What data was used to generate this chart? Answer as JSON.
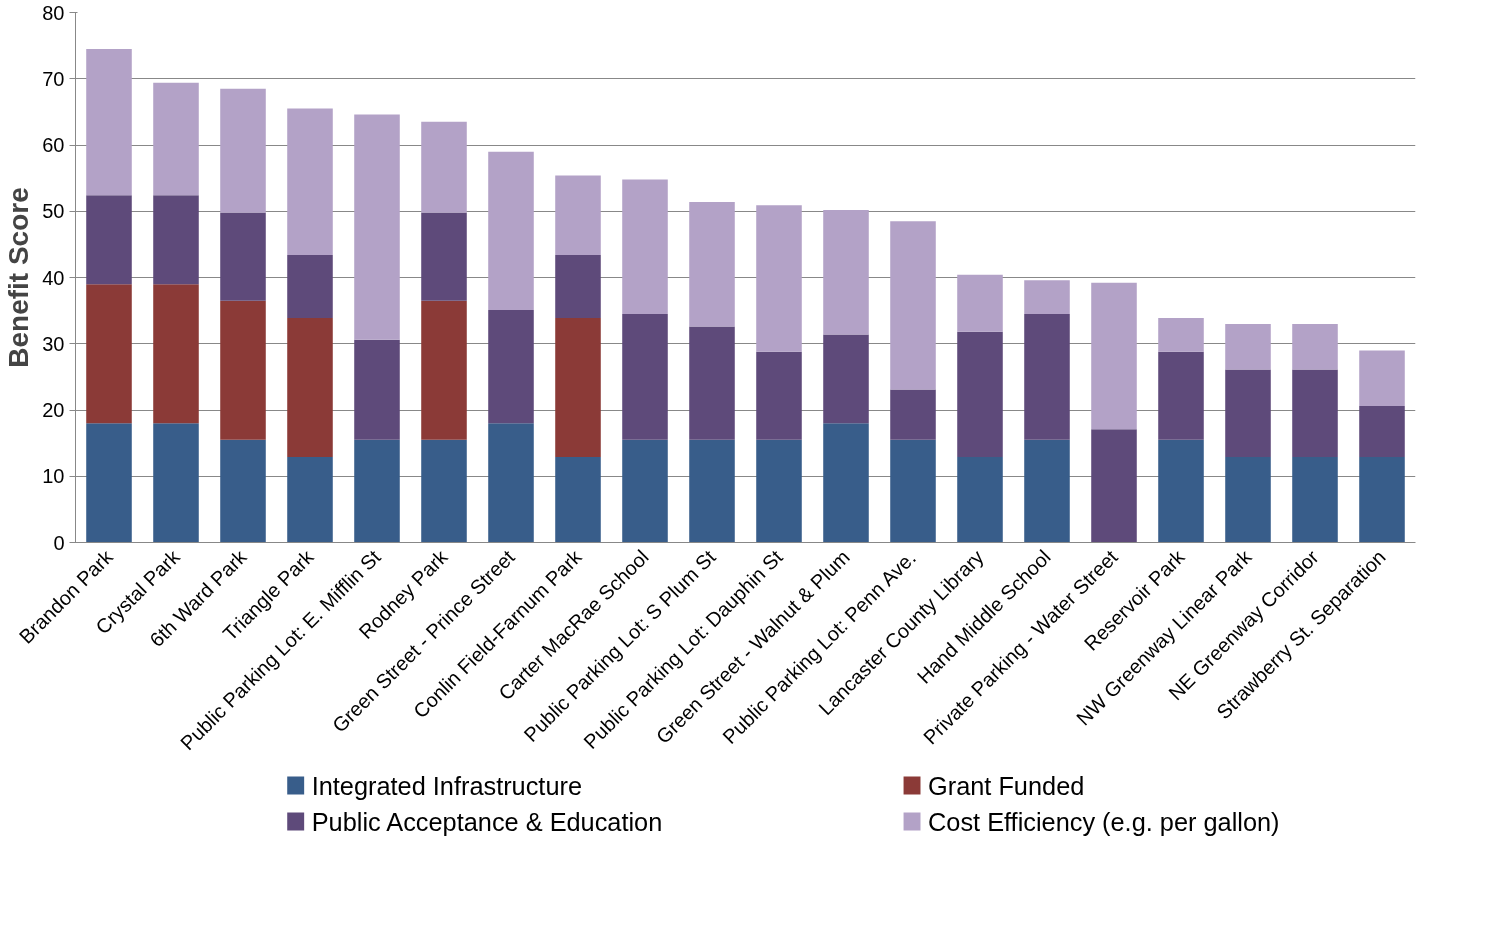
{
  "chart_data": {
    "type": "bar",
    "stacked": true,
    "ylabel": "Benefit Score",
    "categories": [
      "Brandon Park",
      "Crystal Park",
      "6th Ward Park",
      "Triangle Park",
      "Public Parking Lot: E. Mifflin St",
      "Rodney Park",
      "Green Street - Prince Street",
      "Conlin Field-Farnum Park",
      "Carter MacRae School",
      "Public Parking Lot: S Plum St",
      "Public Parking Lot: Dauphin St",
      "Green Street - Walnut & Plum",
      "Public Parking Lot: Penn Ave.",
      "Lancaster County Library",
      "Hand Middle School",
      "Private Parking - Water Street",
      "Reservoir Park",
      "NW Greenway Linear Park",
      "NE Greenway Corridor",
      "Strawberry St. Separation"
    ],
    "series": [
      {
        "name": "Integrated Infrastructure",
        "color": "#385d8a",
        "values": [
          18,
          18,
          15.5,
          12.9,
          15.5,
          15.5,
          18,
          12.9,
          15.5,
          15.5,
          15.5,
          18,
          15.5,
          12.9,
          15.5,
          null,
          15.5,
          12.9,
          12.9,
          12.9
        ]
      },
      {
        "name": "Grant Funded",
        "color": "#8b3a37",
        "values": [
          21,
          21,
          21,
          21,
          null,
          21,
          null,
          21,
          null,
          null,
          null,
          null,
          null,
          null,
          null,
          null,
          null,
          null,
          null,
          null
        ]
      },
      {
        "name": "Public Acceptance & Education",
        "color": "#5e4a7a",
        "values": [
          13.4,
          13.4,
          13.3,
          9.5,
          15.1,
          13.3,
          17.1,
          9.5,
          19,
          17.1,
          13.3,
          13.4,
          7.6,
          18.9,
          19,
          17.1,
          13.3,
          13.2,
          13.2,
          7.7
        ]
      },
      {
        "name": "Cost Efficiency (e.g. per gallon)",
        "color": "#b3a2c7",
        "values": [
          22.1,
          17,
          18.7,
          22.1,
          34,
          13.7,
          23.9,
          12,
          20.3,
          18.8,
          22.1,
          18.8,
          25.4,
          8.6,
          5.1,
          22.1,
          5.1,
          6.9,
          6.9,
          8.4
        ]
      }
    ],
    "ylim": [
      0,
      80
    ],
    "yticks": [
      0,
      10,
      20,
      30,
      40,
      50,
      60,
      70,
      80
    ],
    "grid": "y",
    "legend": "bottom"
  }
}
